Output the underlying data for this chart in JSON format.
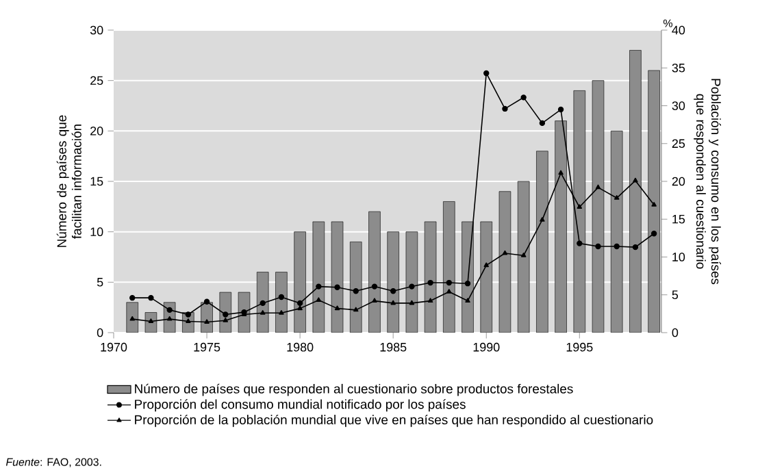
{
  "chart_data": {
    "type": "bar",
    "x": [
      1971,
      1972,
      1973,
      1974,
      1975,
      1976,
      1977,
      1978,
      1979,
      1980,
      1981,
      1982,
      1983,
      1984,
      1985,
      1986,
      1987,
      1988,
      1989,
      1990,
      1991,
      1992,
      1993,
      1994,
      1995,
      1996,
      1997,
      1998,
      1999
    ],
    "xlim": [
      1970,
      1999.4
    ],
    "xticks": [
      1970,
      1975,
      1980,
      1985,
      1990,
      1995
    ],
    "ylim": [
      0,
      30
    ],
    "yticks": [
      0,
      5,
      10,
      15,
      20,
      25,
      30
    ],
    "y2lim": [
      0,
      40
    ],
    "y2ticks": [
      0,
      5,
      10,
      15,
      20,
      25,
      30,
      35,
      40
    ],
    "ylabel": "Número de países que facilitan información",
    "y2label": "Población y consumo en los países que responden al cuestionario",
    "grid": "y",
    "legend": "bottom",
    "annotations": [
      "%",
      "*Fuente*: FAO, 2003."
    ],
    "series": [
      {
        "name": "Número de países que responden al cuestionario sobre productos forestales",
        "color": "#8c8c8c",
        "values": [
          3,
          2,
          3,
          2,
          3,
          4,
          4,
          6,
          6,
          10,
          11,
          11,
          9,
          12,
          10,
          10,
          11,
          13,
          11,
          11,
          14,
          15,
          18,
          21,
          24,
          25,
          20,
          28,
          26
        ]
      },
      {
        "name": "Proporción del consumo mundial notificado por los países",
        "type": "line",
        "axis": "y2",
        "marker": "circle",
        "color": "#000000",
        "values": [
          4.6,
          4.6,
          3.0,
          2.4,
          4.1,
          2.4,
          2.7,
          3.9,
          4.7,
          3.9,
          6.1,
          6.0,
          5.5,
          6.1,
          5.5,
          6.1,
          6.6,
          6.6,
          6.5,
          34.3,
          29.6,
          31.1,
          27.7,
          29.5,
          11.8,
          11.4,
          11.4,
          11.3,
          13.1
        ]
      },
      {
        "name": "Proporción de la población mundial que vive en países que han respondido al cuestionario",
        "type": "line",
        "axis": "y2",
        "marker": "triangle",
        "color": "#000000",
        "values": [
          1.8,
          1.5,
          1.8,
          1.5,
          1.4,
          1.6,
          2.4,
          2.6,
          2.6,
          3.2,
          4.3,
          3.2,
          3.0,
          4.2,
          3.9,
          3.9,
          4.2,
          5.4,
          4.2,
          8.9,
          10.5,
          10.2,
          14.9,
          21.1,
          16.6,
          19.2,
          17.8,
          20.1,
          16.9
        ]
      }
    ]
  }
}
